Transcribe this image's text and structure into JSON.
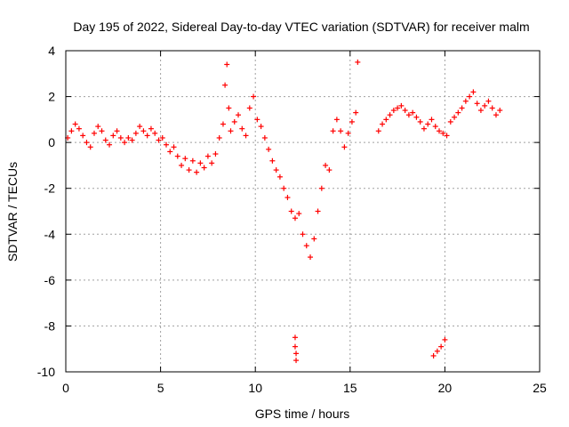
{
  "chart_data": {
    "type": "scatter",
    "title": "Day 195 of 2022, Sidereal Day-to-day VTEC variation (SDTVAR) for receiver malm",
    "xlabel": "GPS time / hours",
    "ylabel": "SDTVAR / TECUs",
    "xlim": [
      0,
      25
    ],
    "ylim": [
      -10,
      4
    ],
    "xticks": [
      0,
      5,
      10,
      15,
      20,
      25
    ],
    "yticks": [
      -10,
      -8,
      -6,
      -4,
      -2,
      0,
      2,
      4
    ],
    "grid": true,
    "marker": "+",
    "series": [
      {
        "name": "SDTVAR",
        "color": "#ff0000",
        "x": [
          0.1,
          0.3,
          0.5,
          0.7,
          0.9,
          1.1,
          1.3,
          1.5,
          1.7,
          1.9,
          2.1,
          2.3,
          2.5,
          2.7,
          2.9,
          3.1,
          3.3,
          3.5,
          3.7,
          3.9,
          4.1,
          4.3,
          4.5,
          4.7,
          4.9,
          5.1,
          5.3,
          5.5,
          5.7,
          5.9,
          6.1,
          6.3,
          6.5,
          6.7,
          6.9,
          7.1,
          7.3,
          7.5,
          7.7,
          7.9,
          8.1,
          8.3,
          8.4,
          8.5,
          8.6,
          8.7,
          8.9,
          9.1,
          9.3,
          9.5,
          9.7,
          9.9,
          10.1,
          10.3,
          10.5,
          10.7,
          10.9,
          11.1,
          11.3,
          11.5,
          11.7,
          11.9,
          12.1,
          12.3,
          12.5,
          12.7,
          12.9,
          13.1,
          13.3,
          13.5,
          13.7,
          13.9,
          14.1,
          14.3,
          14.5,
          14.7,
          14.9,
          15.1,
          15.3,
          15.4,
          16.5,
          16.7,
          16.9,
          17.1,
          17.3,
          17.5,
          17.7,
          17.9,
          18.1,
          18.3,
          18.5,
          18.7,
          18.9,
          19.1,
          19.3,
          19.5,
          19.7,
          19.9,
          20.1,
          20.3,
          20.5,
          20.7,
          20.9,
          21.1,
          21.3,
          21.5,
          21.7,
          21.9,
          22.1,
          22.3,
          22.5,
          22.7,
          22.9,
          12.1,
          12.1,
          12.15,
          12.15,
          19.4,
          19.6,
          19.8,
          20.0
        ],
        "y": [
          0.2,
          0.5,
          0.8,
          0.6,
          0.3,
          0.0,
          -0.2,
          0.4,
          0.7,
          0.5,
          0.1,
          -0.1,
          0.3,
          0.5,
          0.2,
          0.0,
          0.2,
          0.1,
          0.4,
          0.7,
          0.5,
          0.3,
          0.6,
          0.4,
          0.1,
          0.2,
          -0.1,
          -0.4,
          -0.2,
          -0.6,
          -1.0,
          -0.7,
          -1.2,
          -0.8,
          -1.3,
          -0.9,
          -1.1,
          -0.6,
          -0.9,
          -0.5,
          0.2,
          0.8,
          2.5,
          3.4,
          1.5,
          0.5,
          0.9,
          1.2,
          0.6,
          0.3,
          1.5,
          2.0,
          1.0,
          0.7,
          0.2,
          -0.3,
          -0.8,
          -1.2,
          -1.5,
          -2.0,
          -2.4,
          -3.0,
          -3.3,
          -3.1,
          -4.0,
          -4.5,
          -5.0,
          -4.2,
          -3.0,
          -2.0,
          -1.0,
          -1.2,
          0.5,
          1.0,
          0.5,
          -0.2,
          0.4,
          0.9,
          1.3,
          3.5,
          0.5,
          0.8,
          1.0,
          1.2,
          1.4,
          1.5,
          1.6,
          1.4,
          1.2,
          1.3,
          1.1,
          0.9,
          0.6,
          0.8,
          1.0,
          0.7,
          0.5,
          0.4,
          0.3,
          0.9,
          1.1,
          1.3,
          1.5,
          1.8,
          2.0,
          2.2,
          1.7,
          1.4,
          1.6,
          1.8,
          1.5,
          1.2,
          1.4,
          -8.5,
          -8.9,
          -9.2,
          -9.5,
          -9.3,
          -9.1,
          -8.9,
          -8.6
        ]
      }
    ]
  }
}
